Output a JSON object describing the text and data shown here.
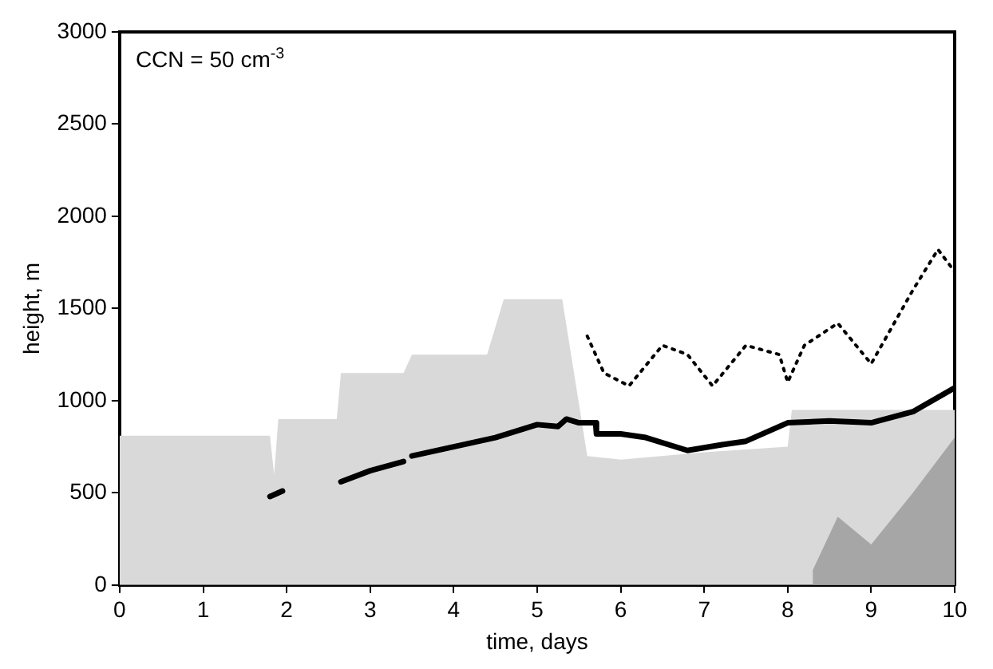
{
  "chart_data": {
    "type": "line",
    "xlabel": "time, days",
    "ylabel": "height, m",
    "annotations": [
      "CCN = 50 cm$^{-3}$"
    ],
    "xlim": [
      0,
      10
    ],
    "xticks": [
      0,
      1,
      2,
      3,
      4,
      5,
      6,
      7,
      8,
      9,
      10
    ],
    "ylim": [
      0,
      3000
    ],
    "yticks": [
      0,
      500,
      1000,
      1500,
      2000,
      2500,
      3000
    ],
    "grid": false,
    "legend": false,
    "marker": "none",
    "series": [
      {
        "type": "area",
        "color": "#d9d9d9",
        "x": [
          0,
          1.8,
          1.85,
          1.9,
          2.6,
          2.65,
          3.4,
          3.5,
          4.4,
          4.6,
          5.3,
          5.6,
          6,
          7,
          8,
          8.05,
          10
        ],
        "values": [
          810,
          810,
          600,
          900,
          900,
          1150,
          1150,
          1250,
          1250,
          1550,
          1550,
          700,
          680,
          720,
          750,
          950,
          950
        ]
      },
      {
        "type": "area",
        "color": "#a6a6a6",
        "x": [
          8.3,
          8.6,
          9.0,
          9.5,
          10
        ],
        "values": [
          80,
          370,
          220,
          500,
          800
        ]
      },
      {
        "type": "line",
        "color": "#000000",
        "line_style": "dotted",
        "x": [
          5.6,
          5.8,
          6.1,
          6.5,
          6.8,
          7.1,
          7.5,
          7.9,
          8.0,
          8.2,
          8.6,
          9.0,
          9.5,
          9.8,
          10
        ],
        "values": [
          1350,
          1150,
          1080,
          1300,
          1250,
          1080,
          1300,
          1250,
          1100,
          1300,
          1420,
          1200,
          1600,
          1820,
          1700
        ]
      },
      {
        "type": "line",
        "color": "#000000",
        "line_style": "solid",
        "x": [
          1.8,
          1.95,
          2.3,
          2.65,
          3.0,
          3.4,
          3.45,
          3.5,
          4.0,
          4.5,
          5.0,
          5.25,
          5.35,
          5.5,
          5.7,
          5.71,
          6.0,
          6.3,
          6.8,
          7.2,
          7.5,
          8.0,
          8.5,
          9.0,
          9.5,
          10
        ],
        "values": [
          480,
          510,
          null,
          560,
          620,
          670,
          null,
          700,
          750,
          800,
          870,
          860,
          900,
          880,
          880,
          820,
          820,
          800,
          730,
          760,
          780,
          880,
          890,
          880,
          940,
          1070
        ]
      }
    ]
  }
}
